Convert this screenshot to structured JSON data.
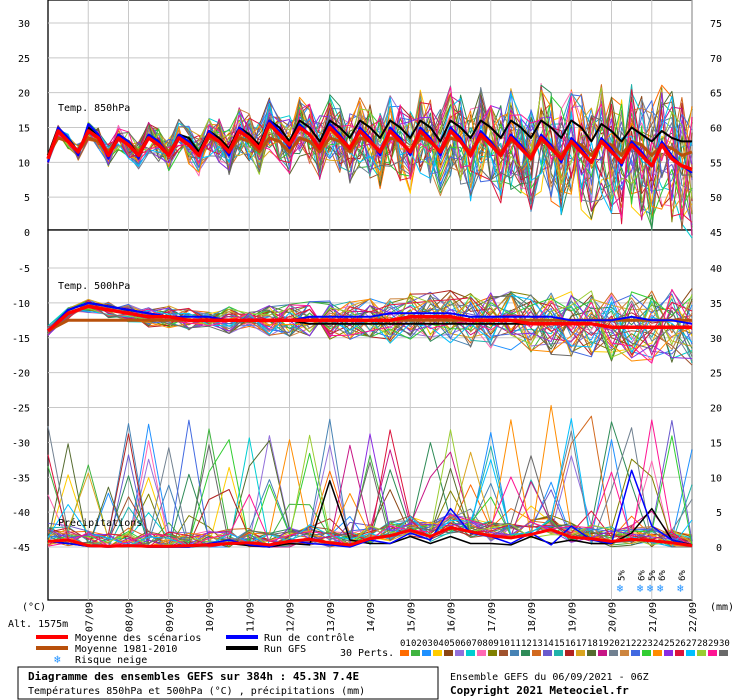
{
  "chart_data": {
    "type": "line",
    "dates": [
      "07/09",
      "08/09",
      "09/09",
      "10/09",
      "11/09",
      "12/09",
      "13/09",
      "14/09",
      "15/09",
      "16/09",
      "17/09",
      "18/09",
      "19/09",
      "20/09",
      "21/09",
      "22/09"
    ],
    "panels": {
      "t850": {
        "label": "Temp. 850hPa",
        "left_ticks": [
          30,
          25,
          20,
          15,
          10,
          5,
          0
        ],
        "right_ticks": [
          75,
          70,
          65,
          60,
          55,
          50,
          45
        ],
        "ylim": [
          0,
          33
        ],
        "x": [
          0,
          0.5,
          1,
          1.5,
          2,
          2.5,
          3,
          3.5,
          4,
          4.5,
          5,
          5.5,
          6,
          6.5,
          7,
          7.5,
          8,
          8.5,
          9,
          9.5,
          10,
          10.5,
          11,
          11.5,
          12,
          12.5,
          13,
          13.5,
          14,
          14.5,
          15,
          15.5,
          16,
          16.5,
          17,
          17.5,
          18,
          18.5,
          19,
          19.5,
          20,
          20.5,
          21,
          21.5,
          22,
          22.5,
          23,
          23.5,
          24,
          24.5,
          25,
          25.5,
          26,
          26.5,
          27,
          27.5,
          28,
          28.5,
          29,
          29.5,
          30,
          30.5,
          31,
          31.5,
          32
        ],
        "mean": [
          10.5,
          14.5,
          13,
          11.5,
          14.5,
          13.5,
          11,
          13.5,
          12.5,
          11,
          13.5,
          12.5,
          11,
          13.5,
          12.5,
          11,
          14,
          13,
          11.5,
          14.5,
          13.5,
          12,
          15.5,
          14,
          12.5,
          15,
          14,
          12,
          15,
          13.5,
          12,
          14.5,
          13,
          11.5,
          14.5,
          13,
          11.5,
          14.5,
          13,
          11.5,
          14.5,
          13,
          11,
          14,
          12.5,
          11,
          13.5,
          12,
          10.5,
          13.5,
          12,
          10.5,
          13,
          11.5,
          10,
          13,
          11.5,
          10,
          12.5,
          11,
          9.5,
          12.5,
          10.5,
          9.5,
          9
        ],
        "control": [
          10,
          15,
          13.5,
          11,
          15.5,
          14,
          10.5,
          14,
          13,
          10.5,
          14,
          13,
          11,
          14,
          13,
          11,
          14.5,
          13,
          11,
          15,
          13.5,
          12,
          16,
          14.5,
          12,
          15.5,
          14,
          12,
          15.5,
          14,
          12,
          15,
          13.5,
          11,
          15,
          13.5,
          11,
          15,
          13.5,
          11,
          15,
          13.5,
          11,
          14.5,
          13,
          11,
          14,
          12.5,
          10.5,
          14,
          12.5,
          10,
          13.5,
          12,
          10,
          13.5,
          12,
          9.5,
          13,
          11.5,
          9.5,
          13,
          11,
          9.5,
          8.5
        ],
        "gfs": [
          11,
          15,
          13.5,
          11.5,
          15,
          14,
          11,
          14,
          13,
          11,
          14,
          13,
          11,
          14,
          13.5,
          11.5,
          14.5,
          13.5,
          12,
          15,
          14,
          12.5,
          16,
          15,
          13,
          16,
          15,
          13,
          16,
          15,
          13.5,
          16,
          15,
          13.5,
          16,
          15,
          13.5,
          16,
          15,
          13,
          16,
          15,
          13.5,
          16,
          15,
          13.5,
          16,
          15,
          13.5,
          16,
          15,
          13.5,
          16,
          15,
          13,
          15.5,
          14.5,
          13,
          15,
          14,
          13,
          14.5,
          13.5,
          13,
          13
        ],
        "climo": [
          11,
          13.5,
          13,
          11.5,
          13.5,
          13,
          11.5,
          13.5,
          13,
          11.5,
          13.5,
          13,
          11.5,
          13.5,
          13,
          11.5,
          13.5,
          13,
          11.5,
          13.5,
          13,
          11.5,
          13.5,
          13,
          11.5,
          13.5,
          13,
          11.5,
          13.5,
          13,
          11.5,
          13.5,
          13,
          11.5,
          13.5,
          13,
          11.5,
          13.5,
          13,
          11.5,
          13.5,
          13,
          11.5,
          13.5,
          13,
          11.5,
          13,
          12.5,
          11,
          13,
          12.5,
          11,
          13,
          12.5,
          11,
          13,
          12.5,
          11,
          13,
          12.5,
          11,
          12.5,
          12,
          11,
          11.5
        ]
      },
      "t500": {
        "label": "Temp. 500hPa",
        "left_ticks": [
          -5,
          -10,
          -15,
          -20,
          -25,
          -30,
          -35,
          -40,
          -45
        ],
        "right_ticks": [
          40,
          35,
          30,
          25,
          20,
          15,
          10,
          5,
          0
        ],
        "ylim": [
          -48,
          -1
        ],
        "x": [
          0,
          1,
          2,
          3,
          4,
          5,
          6,
          7,
          8,
          9,
          10,
          11,
          12,
          13,
          14,
          15,
          16,
          17,
          18,
          19,
          20,
          21,
          22,
          23,
          24,
          25,
          26,
          27,
          28,
          29,
          30,
          31,
          32
        ],
        "mean": [
          -14,
          -11.5,
          -10.5,
          -11,
          -11.5,
          -12,
          -12,
          -12.5,
          -12.5,
          -12.5,
          -12.5,
          -12.5,
          -12.5,
          -12.5,
          -12.5,
          -12.5,
          -12.5,
          -12.5,
          -12,
          -12,
          -12,
          -12.5,
          -12.5,
          -12.5,
          -13,
          -13,
          -13,
          -13,
          -13.5,
          -13.5,
          -13.5,
          -13.5,
          -13.5
        ],
        "control": [
          -14,
          -11,
          -10,
          -10.5,
          -11,
          -11.5,
          -12,
          -12,
          -12,
          -12.5,
          -12.5,
          -12.5,
          -12.5,
          -12,
          -12,
          -12,
          -12,
          -11.5,
          -11.5,
          -11.5,
          -11.5,
          -12,
          -12,
          -12,
          -12,
          -12,
          -12.5,
          -12.5,
          -12.5,
          -12,
          -12.5,
          -12.5,
          -13
        ],
        "gfs": [
          -14,
          -11,
          -10,
          -10.5,
          -11,
          -11.5,
          -12,
          -12.5,
          -12.5,
          -12.5,
          -12.5,
          -12.5,
          -12.5,
          -13,
          -13,
          -13,
          -13,
          -13,
          -13,
          -13,
          -13,
          -13,
          -13,
          -13,
          -13,
          -13,
          -13,
          -13,
          -13.5,
          -13.5,
          -13.5,
          -13.5,
          -13.5
        ],
        "climo": [
          -14,
          -12.5,
          -12.5,
          -12.5,
          -12.5,
          -12.5,
          -12.5,
          -12.5,
          -12.5,
          -12.5,
          -12.5,
          -12.5,
          -12.5,
          -12.5,
          -12.5,
          -12.5,
          -12.5,
          -12.5,
          -12.5,
          -12.5,
          -12.5,
          -12.5,
          -12.5,
          -12.5,
          -12.5,
          -12.5,
          -12.5,
          -12.5,
          -12.5,
          -12.5,
          -12.5,
          -12.5,
          -12.5
        ]
      },
      "precip": {
        "label": "Précipitations",
        "x": [
          0,
          1,
          2,
          3,
          4,
          5,
          6,
          7,
          8,
          9,
          10,
          11,
          12,
          13,
          14,
          15,
          16,
          17,
          18,
          19,
          20,
          21,
          22,
          23,
          24,
          25,
          26,
          27,
          28,
          29,
          30,
          31,
          32
        ],
        "mean": [
          0.8,
          1,
          0.2,
          0.1,
          0.2,
          0.1,
          0.1,
          0.2,
          0.3,
          0.5,
          0.6,
          0.3,
          0.8,
          1.1,
          0.6,
          0.3,
          1.2,
          1.6,
          2.4,
          1.5,
          2.8,
          2.2,
          1.6,
          1.3,
          1.8,
          2.5,
          1.4,
          1.2,
          0.8,
          1.1,
          0.9,
          0.6,
          0.2
        ],
        "control": [
          0.8,
          0.5,
          0.1,
          0,
          0.2,
          0,
          0,
          0,
          0.5,
          1,
          0.3,
          0,
          1,
          0.5,
          0.3,
          0,
          1,
          0.5,
          2,
          1,
          5.5,
          2,
          1.5,
          0.5,
          2,
          0.3,
          3,
          1,
          0.5,
          11,
          3,
          1,
          0.2
        ],
        "gfs": [
          0.8,
          0.5,
          0.1,
          0,
          0.1,
          0,
          0,
          0,
          0.3,
          0.5,
          0.2,
          0,
          0.5,
          0.3,
          9.5,
          1,
          0.5,
          0.5,
          1.5,
          0.5,
          1.5,
          0.5,
          0.5,
          0.3,
          1.5,
          0.5,
          1,
          0.5,
          0.5,
          2,
          5.5,
          1,
          0.3
        ]
      }
    },
    "right_unit_precip": "(mm)",
    "left_unit": "(°C)",
    "snow_risk": [
      {
        "x": 28.5,
        "pct": "5%"
      },
      {
        "x": 29.5,
        "pct": "6%"
      },
      {
        "x": 30.0,
        "pct": "5%"
      },
      {
        "x": 30.5,
        "pct": "6%"
      },
      {
        "x": 31.5,
        "pct": "6%"
      }
    ]
  },
  "colors": {
    "mean": "#ff0000",
    "climo": "#b8500b",
    "control": "#0000ff",
    "gfs": "#000000",
    "perts": [
      "#ff6b00",
      "#3fb33f",
      "#1e90ff",
      "#ffcc00",
      "#8b4513",
      "#9370db",
      "#00ced1",
      "#ff69b4",
      "#808000",
      "#a0522d",
      "#4682b4",
      "#2e8b57",
      "#d2691e",
      "#6a5acd",
      "#20b2aa",
      "#b22222",
      "#daa520",
      "#556b2f",
      "#c71585",
      "#708090",
      "#cd853f",
      "#4169e1",
      "#32cd32",
      "#ff8c00",
      "#8a2be2",
      "#dc143c",
      "#00bfff",
      "#9acd32",
      "#ff1493",
      "#696969"
    ]
  },
  "alt_label": "Alt. 1575m",
  "legend": {
    "mean": "Moyenne des scénarios",
    "climo": "Moyenne 1981-2010",
    "snow": "Risque neige",
    "control": "Run de contrôle",
    "gfs": "Run GFS",
    "perts_label": "30 Perts.",
    "perts_numbers": [
      "01",
      "02",
      "03",
      "04",
      "05",
      "06",
      "07",
      "08",
      "09",
      "10",
      "11",
      "12",
      "13",
      "14",
      "15",
      "16",
      "17",
      "18",
      "19",
      "20",
      "21",
      "22",
      "23",
      "24",
      "25",
      "26",
      "27",
      "28",
      "29",
      "30"
    ]
  },
  "footer": {
    "title": "Diagramme des ensembles GEFS sur 384h : 45.3N 7.4E",
    "subtitle": "Températures 850hPa et 500hPa (°C) , précipitations (mm)",
    "run": "Ensemble GEFS du 06/09/2021 - 06Z",
    "copyright": "Copyright 2021 Meteociel.fr"
  }
}
